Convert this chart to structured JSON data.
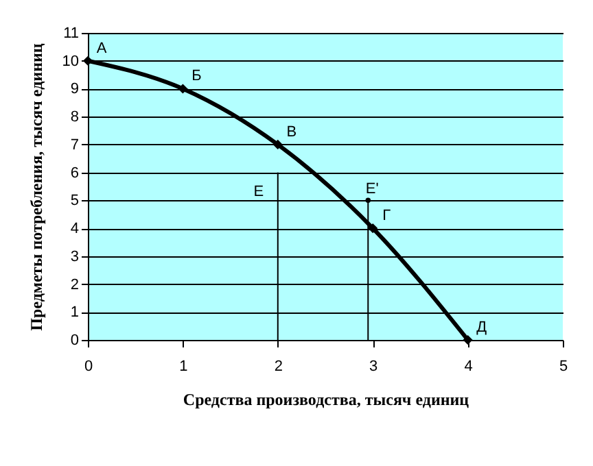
{
  "chart_data": {
    "type": "line",
    "xlabel": "Средства производства, тысяч единиц",
    "ylabel": "Предметы потребления, тысяч единиц",
    "xlim": [
      0,
      5
    ],
    "xticks": [
      0,
      1,
      2,
      3,
      4,
      5
    ],
    "ylim": [
      0,
      11
    ],
    "yticks": [
      0,
      1,
      2,
      3,
      4,
      5,
      6,
      7,
      8,
      9,
      10,
      11
    ],
    "grid": "y",
    "series": [
      {
        "color": "#000000",
        "x": [
          0,
          1,
          2,
          3,
          4
        ],
        "values": [
          10,
          9,
          7,
          4,
          0
        ],
        "marker": "diamond"
      },
      {
        "color": "#000000",
        "x": [
          2,
          2
        ],
        "values": [
          0,
          6
        ],
        "marker": "none"
      },
      {
        "color": "#000000",
        "x": [
          2.95,
          2.95
        ],
        "values": [
          0,
          5
        ],
        "marker": "circle"
      }
    ],
    "annotations": [
      {
        "text": "А",
        "x": 0,
        "y": 10
      },
      {
        "text": "Б",
        "x": 1,
        "y": 9
      },
      {
        "text": "В",
        "x": 2,
        "y": 7
      },
      {
        "text": "Г",
        "x": 3,
        "y": 4
      },
      {
        "text": "Д",
        "x": 4,
        "y": 0
      },
      {
        "text": "Е",
        "x": 2,
        "y": 6
      },
      {
        "text": "Е'",
        "x": 2.95,
        "y": 5
      }
    ]
  }
}
